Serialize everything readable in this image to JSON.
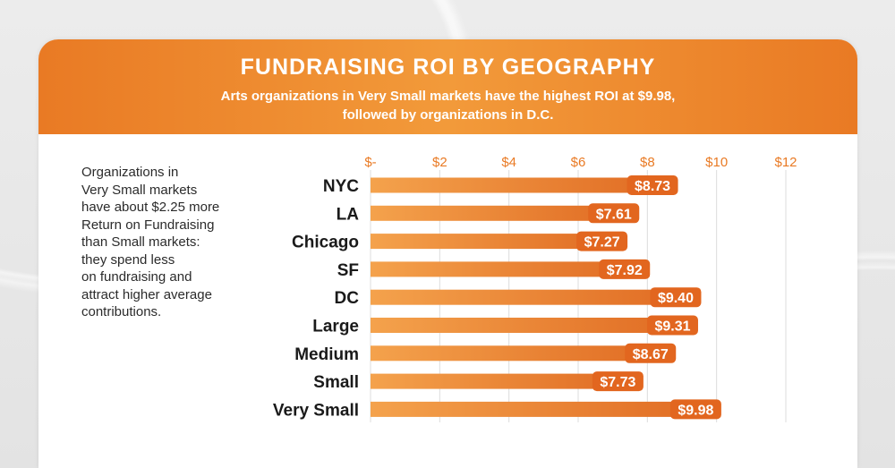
{
  "header": {
    "title": "FUNDRAISING ROI BY GEOGRAPHY",
    "subtitle_line1": "Arts organizations in Very Small markets have the highest ROI at $9.98,",
    "subtitle_line2": "followed by organizations in D.C."
  },
  "side_note": "Organizations in\nVery Small markets\nhave about $2.25 more\nReturn on Fundraising\nthan Small markets:\nthey spend less\non fundraising and\nattract higher average\ncontributions.",
  "colors": {
    "accent": "#e97a24",
    "bar_start": "#f4a24c",
    "bar_end": "#e06a22",
    "label_bg": "#e2661f"
  },
  "chart_data": {
    "type": "bar",
    "orientation": "horizontal",
    "categories": [
      "NYC",
      "LA",
      "Chicago",
      "SF",
      "DC",
      "Large",
      "Medium",
      "Small",
      "Very Small"
    ],
    "values": [
      8.73,
      7.61,
      7.27,
      7.92,
      9.4,
      9.31,
      8.67,
      7.73,
      9.98
    ],
    "data_labels": [
      "$8.73",
      "$7.61",
      "$7.27",
      "$7.92",
      "$9.40",
      "$9.31",
      "$8.67",
      "$7.73",
      "$9.98"
    ],
    "x_ticks": [
      0,
      2,
      4,
      6,
      8,
      10,
      12
    ],
    "x_tick_labels": [
      "$-",
      "$2",
      "$4",
      "$6",
      "$8",
      "$10",
      "$12"
    ],
    "xlim": [
      0,
      12
    ],
    "grid": "vertical",
    "title": "FUNDRAISING ROI BY GEOGRAPHY",
    "xlabel": "",
    "ylabel": ""
  }
}
